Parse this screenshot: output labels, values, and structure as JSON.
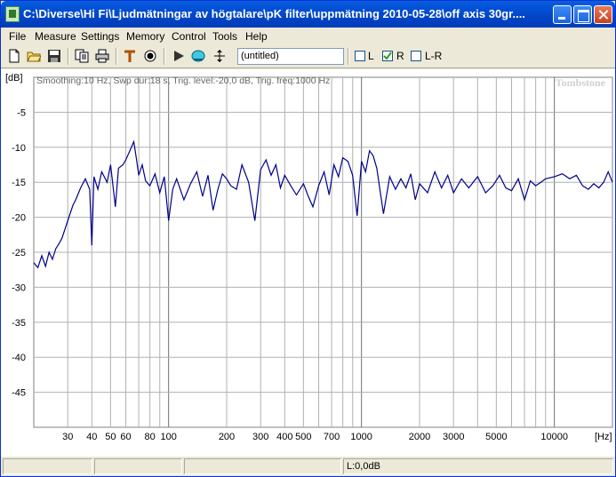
{
  "window": {
    "title": "C:\\Diverse\\Hi Fi\\Ljudmätningar av högtalare\\pK filter\\uppmätning 2010-05-28\\off axis 30gr....",
    "min_label": "",
    "max_label": "",
    "close_label": ""
  },
  "menu": [
    "File",
    "Measure",
    "Settings",
    "Memory",
    "Control",
    "Tools",
    "Help"
  ],
  "toolbar": {
    "icons": [
      "new-file-icon",
      "open-folder-icon",
      "save-disk-icon",
      "copy-icon",
      "print-icon",
      "marker-t-icon",
      "target-icon",
      "play-icon",
      "sweep-icon",
      "cursor-arrows-icon"
    ],
    "memo_value": "(untitled)",
    "checks": [
      {
        "label": "L",
        "checked": false
      },
      {
        "label": "R",
        "checked": true
      },
      {
        "label": "L-R",
        "checked": false
      }
    ]
  },
  "plot": {
    "info_text": "Smoothing:10 Hz, Swp dur:18 s, Trig. level:-20,0 dB, Trig. freq:1000 Hz",
    "watermark": "Tombstone",
    "y_unit": "[dB]",
    "x_unit": "[Hz]",
    "trace_color": "#00008b"
  },
  "chart_data": {
    "type": "line",
    "xscale": "log",
    "xlim": [
      20,
      20000
    ],
    "ylim": [
      -50,
      0
    ],
    "ylabel": "[dB]",
    "xlabel": "[Hz]",
    "grid": true,
    "y_ticks": [
      -5,
      -10,
      -15,
      -20,
      -25,
      -30,
      -35,
      -40,
      -45
    ],
    "x_ticks": [
      30,
      40,
      50,
      60,
      80,
      100,
      200,
      300,
      400,
      500,
      700,
      1000,
      2000,
      3000,
      5000,
      10000
    ],
    "series": [
      {
        "x": [
          20,
          21,
          22,
          23,
          24,
          25,
          26,
          27,
          28,
          30,
          32,
          33,
          35,
          37,
          39,
          40,
          41,
          43,
          45,
          48,
          50,
          53,
          55,
          58,
          60,
          63,
          66,
          68,
          70,
          73,
          76,
          80,
          85,
          90,
          95,
          100,
          105,
          110,
          120,
          130,
          140,
          150,
          160,
          170,
          180,
          190,
          200,
          210,
          225,
          240,
          260,
          280,
          300,
          320,
          340,
          360,
          380,
          400,
          430,
          460,
          500,
          530,
          560,
          600,
          640,
          680,
          720,
          760,
          800,
          850,
          900,
          950,
          1000,
          1050,
          1100,
          1150,
          1200,
          1300,
          1400,
          1500,
          1600,
          1700,
          1800,
          1900,
          2000,
          2200,
          2400,
          2600,
          2800,
          3000,
          3300,
          3600,
          4000,
          4400,
          4800,
          5200,
          5600,
          6000,
          6500,
          7000,
          7500,
          8000,
          8500,
          9000,
          10000,
          11000,
          12000,
          13000,
          14000,
          15000,
          16000,
          17000,
          18000,
          19000,
          20000
        ],
        "y": [
          -26.5,
          -27.2,
          -25.5,
          -27.0,
          -25.0,
          -26.0,
          -24.5,
          -23.8,
          -23.0,
          -20.5,
          -18.2,
          -17.5,
          -15.8,
          -14.5,
          -16.0,
          -24.0,
          -14.2,
          -16.0,
          -13.5,
          -15.0,
          -12.5,
          -18.5,
          -13.0,
          -12.5,
          -11.8,
          -10.5,
          -9.2,
          -11.5,
          -14.0,
          -12.5,
          -14.8,
          -15.5,
          -13.8,
          -16.5,
          -14.2,
          -20.5,
          -16.0,
          -14.5,
          -17.5,
          -15.2,
          -13.5,
          -17.0,
          -14.0,
          -19.0,
          -16.0,
          -13.8,
          -14.5,
          -15.5,
          -16.0,
          -12.5,
          -15.0,
          -20.5,
          -13.2,
          -11.8,
          -14.0,
          -12.5,
          -15.8,
          -14.0,
          -15.5,
          -16.8,
          -15.2,
          -17.0,
          -18.5,
          -15.5,
          -13.5,
          -16.8,
          -12.5,
          -14.2,
          -11.5,
          -12.0,
          -14.0,
          -19.8,
          -12.0,
          -13.5,
          -10.5,
          -11.2,
          -13.0,
          -19.5,
          -14.2,
          -16.0,
          -14.5,
          -15.8,
          -13.8,
          -17.5,
          -15.2,
          -16.5,
          -13.5,
          -15.8,
          -14.0,
          -16.5,
          -14.5,
          -15.8,
          -14.2,
          -16.5,
          -15.5,
          -14.0,
          -15.8,
          -16.2,
          -14.5,
          -17.5,
          -14.8,
          -15.5,
          -15.0,
          -14.5,
          -14.2,
          -13.8,
          -14.5,
          -14.0,
          -15.5,
          -16.0,
          -15.2,
          -15.8,
          -15.0,
          -13.5,
          -15.0
        ]
      }
    ]
  },
  "status": {
    "cell1": "",
    "cell2": "",
    "cell3": "",
    "cell4": "L:0,0dB"
  }
}
